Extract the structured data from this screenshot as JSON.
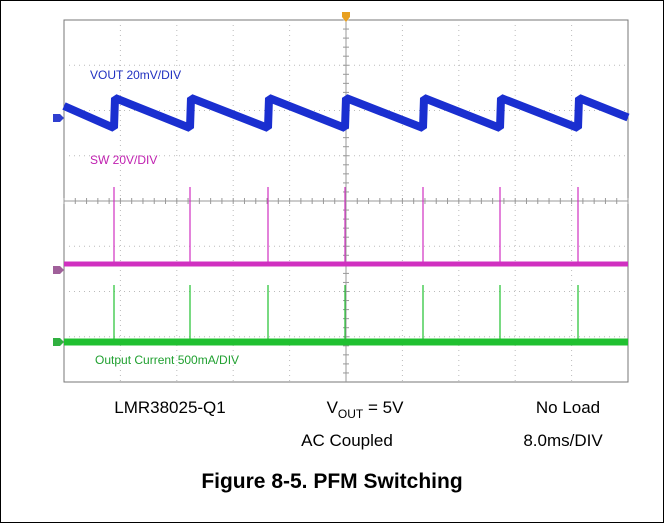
{
  "scope": {
    "channels": [
      {
        "label": "VOUT  20mV/DIV"
      },
      {
        "label": "SW  20V/DIV"
      },
      {
        "label": "Output Current  500mA/DIV"
      }
    ]
  },
  "conditions": {
    "device": "LMR38025-Q1",
    "vout_symbol": "V",
    "vout_subscript": "OUT",
    "vout_rest": " = 5V",
    "load": "No Load",
    "coupling": "AC Coupled",
    "timebase": "8.0ms/DIV"
  },
  "caption": "Figure 8-5. PFM Switching"
}
